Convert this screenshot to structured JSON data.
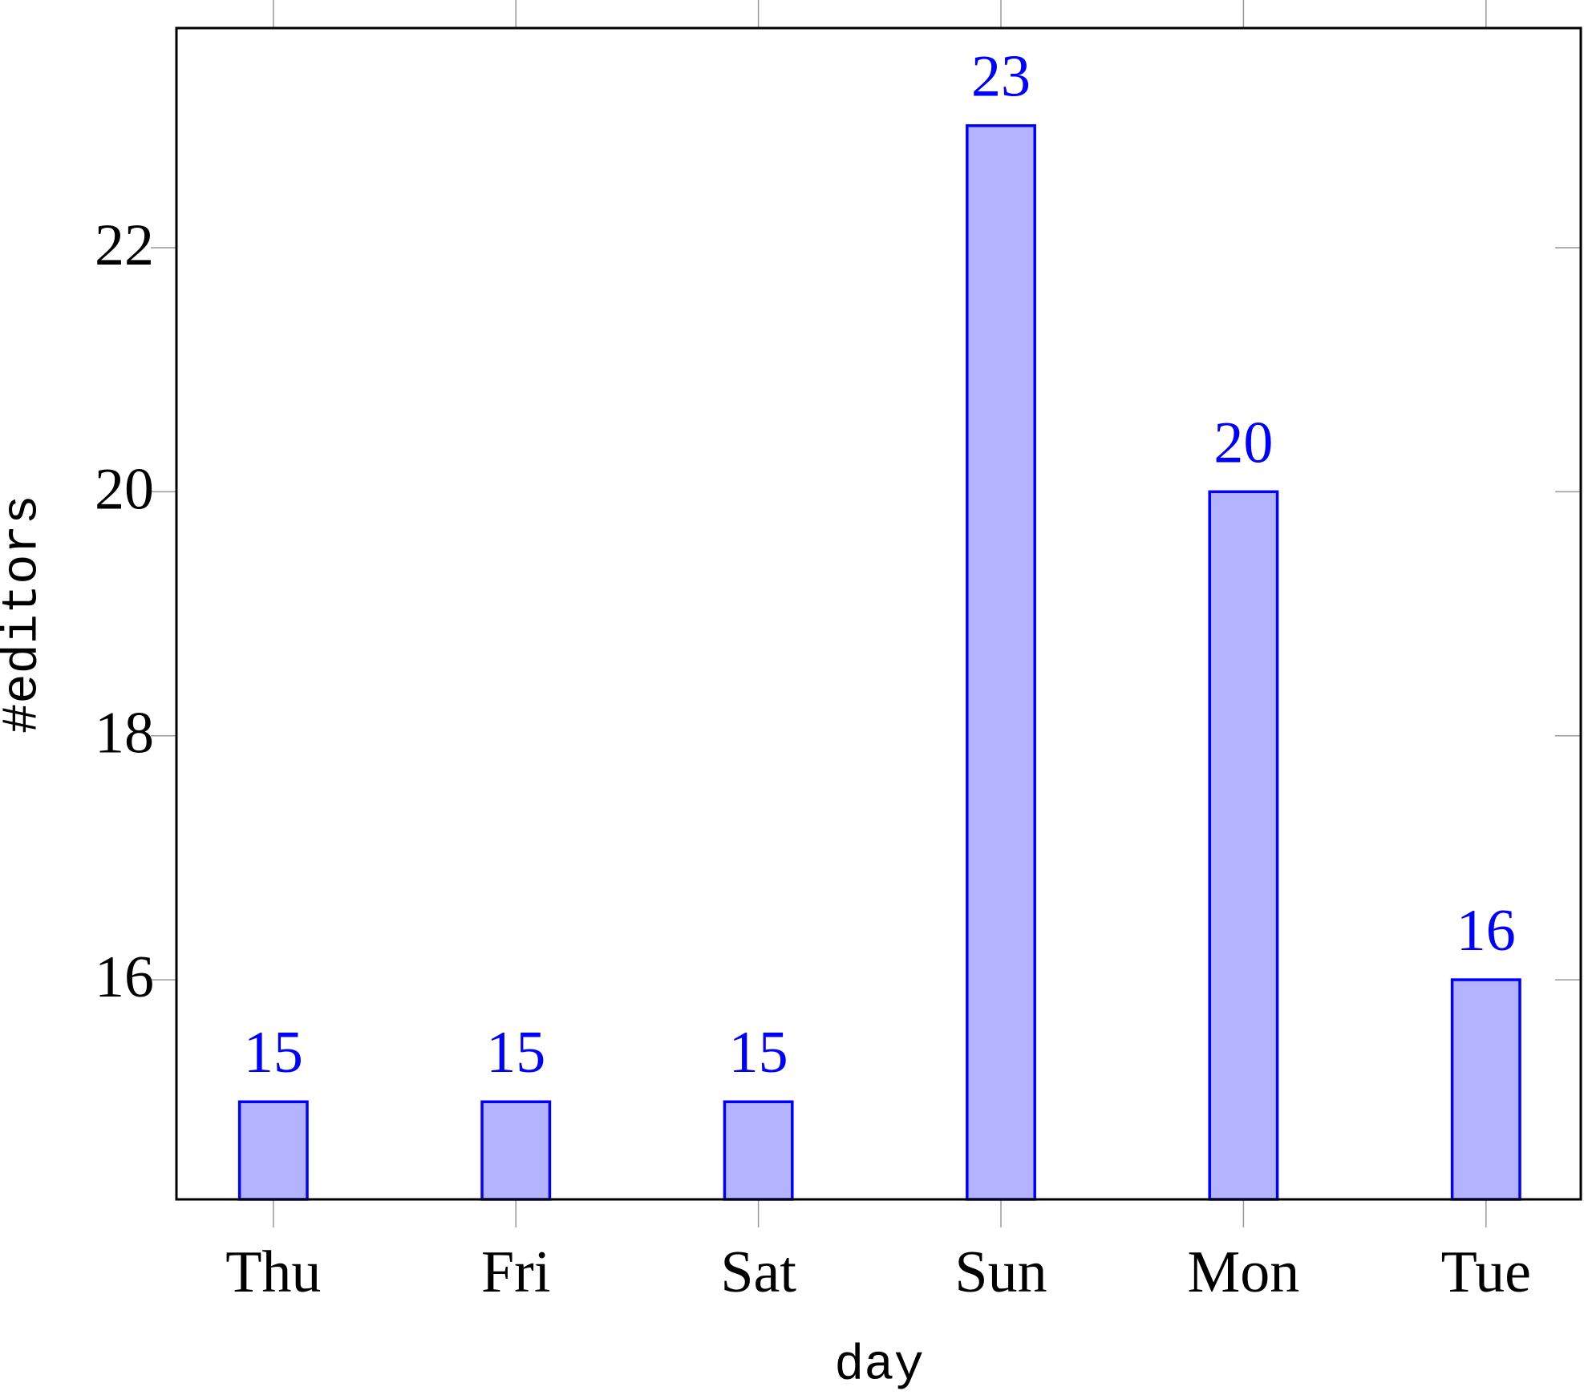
{
  "chart_data": {
    "type": "bar",
    "x_label": "day",
    "y_label": "#editors",
    "categories": [
      "Thu",
      "Fri",
      "Sat",
      "Sun",
      "Mon",
      "Tue"
    ],
    "values": [
      15,
      15,
      15,
      23,
      20,
      16
    ],
    "color": "#b3b3ff",
    "edge_color": "#0000ff",
    "label_color": "#0000ff",
    "ylim": [
      14.2,
      23.8
    ],
    "yticks": [
      16,
      18,
      20,
      22
    ],
    "grid": false
  }
}
